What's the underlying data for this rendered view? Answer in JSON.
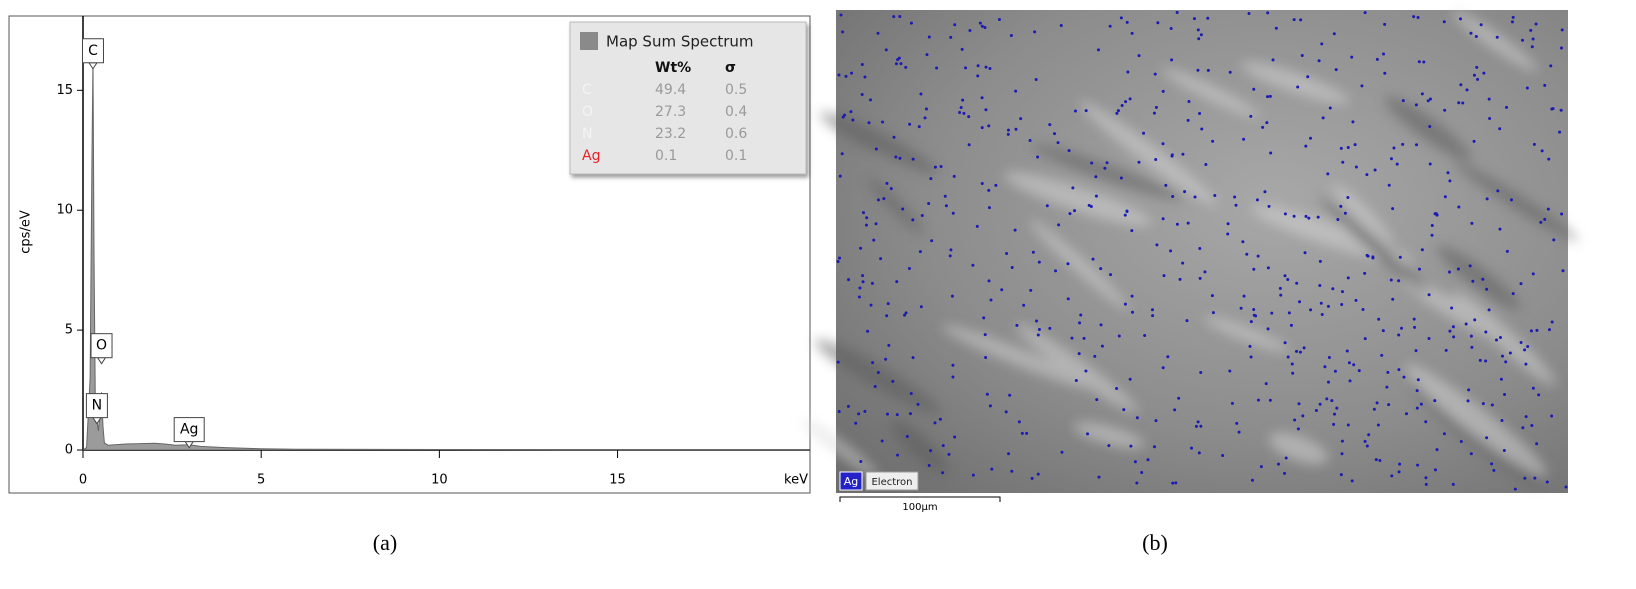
{
  "chart_data": {
    "type": "area",
    "xlabel": "keV",
    "ylabel": "cps/eV",
    "x": [
      0,
      0.1,
      0.2,
      0.25,
      0.28,
      0.31,
      0.35,
      0.39,
      0.43,
      0.48,
      0.52,
      0.56,
      0.6,
      0.7,
      0.9,
      1.2,
      1.5,
      2.0,
      2.3,
      2.6,
      2.98,
      3.3,
      4.0,
      5.0,
      6.0,
      10.0,
      15.0,
      20.4
    ],
    "series": [
      {
        "name": "Map Sum Spectrum",
        "color": "#8a8a8a",
        "values": [
          0,
          0.1,
          3,
          12,
          16.3,
          8,
          1.2,
          1.3,
          0.8,
          1.5,
          2.4,
          1,
          0.3,
          0.2,
          0.22,
          0.25,
          0.26,
          0.28,
          0.25,
          0.2,
          0.22,
          0.15,
          0.1,
          0.05,
          0.03,
          0.02,
          0.01,
          0.01
        ]
      }
    ],
    "xlim": [
      0,
      20.4
    ],
    "ylim": [
      0,
      18.1
    ],
    "xticks": [
      0,
      5,
      10,
      15
    ],
    "yticks": [
      0,
      5,
      10,
      15
    ],
    "annotations": [
      {
        "text": "C",
        "x": 0.28,
        "y": 15.9
      },
      {
        "text": "O",
        "x": 0.52,
        "y": 3.6
      },
      {
        "text": "N",
        "x": 0.39,
        "y": 1.1
      },
      {
        "text": "Ag",
        "x": 2.98,
        "y": 0.1
      }
    ],
    "legend_table": {
      "columns": [
        "Wt%",
        "σ"
      ],
      "rows": [
        {
          "element": "C",
          "color": "#f4f4f4",
          "wt": "49.4",
          "sigma": "0.5"
        },
        {
          "element": "O",
          "color": "#f4f4f4",
          "wt": "27.3",
          "sigma": "0.4"
        },
        {
          "element": "N",
          "color": "#f4f4f4",
          "wt": "23.2",
          "sigma": "0.6"
        },
        {
          "element": "Ag",
          "color": "#e8202a",
          "wt": "0.1",
          "sigma": "0.1"
        }
      ]
    },
    "caption": "(a)"
  },
  "map_panel": {
    "element_tag": "Ag",
    "layer_tag": "Electron",
    "scale_bar": "100µm",
    "caption": "(b)"
  }
}
